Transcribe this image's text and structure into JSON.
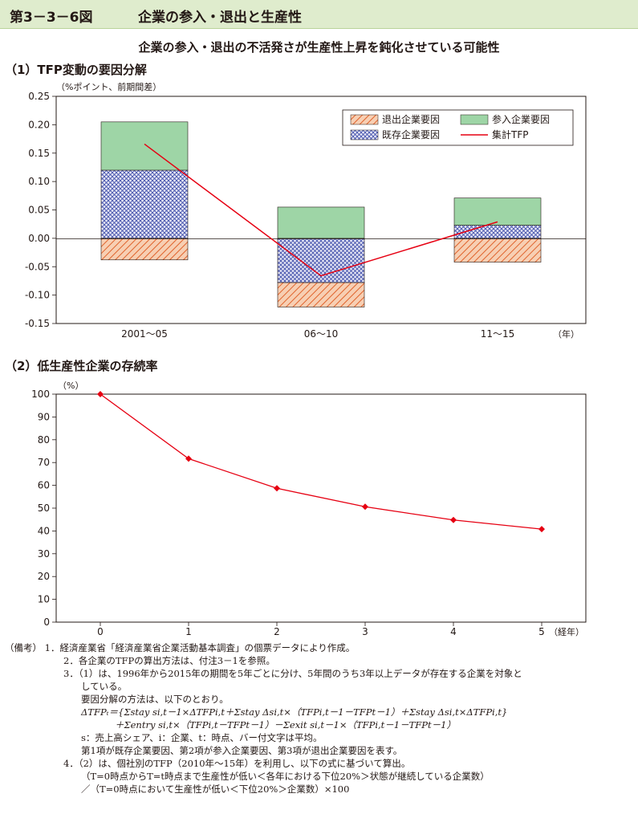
{
  "figure": {
    "number": "第3－3－6図",
    "title": "企業の参入・退出と生産性",
    "headline": "企業の参入・退出の不活発さが生産性上昇を鈍化させている可能性"
  },
  "panel1": {
    "section_title": "（1）TFP変動の要因分解",
    "y_unit_label": "（%ポイント、前期間差）",
    "x_unit_label": "（年）"
  },
  "panel2": {
    "section_title": "（2）低生産性企業の存続率",
    "y_unit_label": "（%）",
    "x_unit_label": "（経年）"
  },
  "colors": {
    "title_bar_bg": "#dfeccd",
    "exit_fill": "#f7cfb3",
    "exit_hatch": "#e0632c",
    "entry_fill": "#9ed5a6",
    "existing_fill": "#e6e6f5",
    "existing_hatch": "#3b4aa8",
    "line_red": "#e60012"
  },
  "chart_data": [
    {
      "type": "bar",
      "stacked": true,
      "categories": [
        "2001～05",
        "06～10",
        "11～15"
      ],
      "ylim": [
        -0.15,
        0.25
      ],
      "yticks": [
        "0.25",
        "0.20",
        "0.15",
        "0.10",
        "0.05",
        "0.00",
        "-0.05",
        "-0.10",
        "-0.15"
      ],
      "series": [
        {
          "name": "退出企業要因",
          "values": [
            -0.038,
            -0.043,
            -0.042
          ]
        },
        {
          "name": "参入企業要因",
          "values": [
            0.085,
            0.055,
            0.048
          ]
        },
        {
          "name": "既存企業要因",
          "values": [
            0.12,
            -0.078,
            0.023
          ]
        },
        {
          "name": "集計TFP",
          "kind": "line",
          "values": [
            0.166,
            -0.066,
            0.029
          ]
        }
      ],
      "legend": "top-right",
      "grid": false
    },
    {
      "type": "line",
      "x": [
        0,
        1,
        2,
        3,
        4,
        5
      ],
      "values": [
        100,
        71.7,
        58.7,
        50.6,
        44.8,
        40.8
      ],
      "xlim": [
        -0.5,
        5.5
      ],
      "ylim": [
        0,
        100
      ],
      "xticks": [
        "0",
        "1",
        "2",
        "3",
        "4",
        "5"
      ],
      "yticks": [
        "100",
        "90",
        "80",
        "70",
        "60",
        "50",
        "40",
        "30",
        "20",
        "10",
        "0"
      ],
      "grid": false
    }
  ],
  "notes": {
    "l1": "（備考）  1．経済産業省「経済産業省企業活動基本調査」の個票データにより作成。",
    "l2": "2．各企業のTFPの算出方法は、付注3－1を参照。",
    "l3": "3．（1）は、1996年から2015年の期間を5年ごとに分け、5年間のうち3年以上データが存在する企業を対象と",
    "l4": "している。",
    "l5": "要因分解の方法は、以下のとおり。",
    "l6": "ΔTFPₜ＝{Σstay si,t－1×ΔTFPi,t＋Σstay Δsi,t×（TFPi,t－1－TFPt－1）＋Σstay Δsi,t×ΔTFPi,t}",
    "l7": "＋Σentry si,t×（TFPi,t－TFPt－1）－Σexit si,t－1×（TFPi,t－1－TFPt－1）",
    "l8": "s：売上高シェア、i：企業、t：時点、バー付文字は平均。",
    "l9": "第1項が既存企業要因、第2項が参入企業要因、第3項が退出企業要因を表す。",
    "l10": "4．（2）は、個社別のTFP（2010年～15年）を利用し、以下の式に基づいて算出。",
    "l11": "（T=0時点からT=t時点まで生産性が低い＜各年における下位20%＞状態が継続している企業数）",
    "l12": "／（T=0時点において生産性が低い＜下位20%＞企業数）×100"
  }
}
